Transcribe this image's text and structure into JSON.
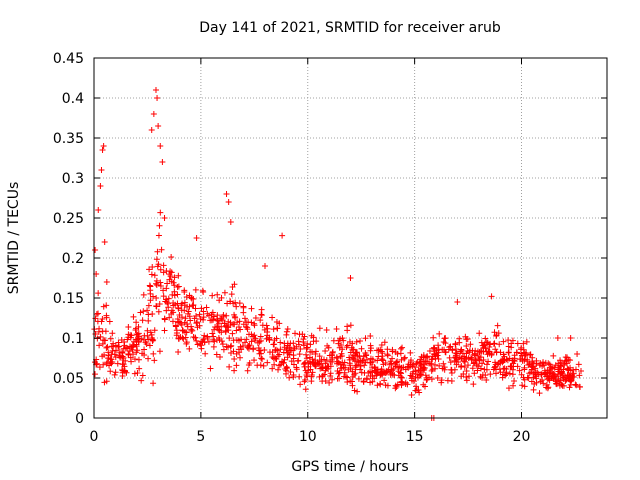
{
  "chart_data": {
    "type": "scatter",
    "title": "Day 141 of 2021, SRMTID for receiver arub",
    "xlabel": "GPS time / hours",
    "ylabel": "SRMTID / TECUs",
    "xlim": [
      0,
      24
    ],
    "ylim": [
      0,
      0.45
    ],
    "xticks": [
      0,
      5,
      10,
      15,
      20
    ],
    "xtick_labels": [
      "0",
      "5",
      "10",
      "15",
      "20"
    ],
    "yticks": [
      0,
      0.05,
      0.1,
      0.15,
      0.2,
      0.25,
      0.3,
      0.35,
      0.4,
      0.45
    ],
    "ytick_labels": [
      "0",
      "0.05",
      "0.1",
      "0.15",
      "0.2",
      "0.25",
      "0.3",
      "0.35",
      "0.4",
      "0.45"
    ],
    "grid": true,
    "marker": "+",
    "series_color": "#ff0000",
    "envelope": {
      "x": [
        0.0,
        0.3,
        0.5,
        1.0,
        2.0,
        2.8,
        3.0,
        3.5,
        4.0,
        5.0,
        6.0,
        6.5,
        8.0,
        9.0,
        10.0,
        12.0,
        14.0,
        15.0,
        16.0,
        18.0,
        19.0,
        20.0,
        21.0,
        22.0,
        22.8
      ],
      "center": [
        0.085,
        0.12,
        0.1,
        0.07,
        0.09,
        0.13,
        0.18,
        0.15,
        0.13,
        0.115,
        0.105,
        0.115,
        0.09,
        0.08,
        0.07,
        0.075,
        0.06,
        0.055,
        0.075,
        0.075,
        0.08,
        0.07,
        0.055,
        0.055,
        0.05
      ],
      "spread": [
        0.04,
        0.08,
        0.06,
        0.035,
        0.04,
        0.09,
        0.1,
        0.06,
        0.05,
        0.045,
        0.045,
        0.06,
        0.04,
        0.04,
        0.035,
        0.035,
        0.03,
        0.03,
        0.03,
        0.03,
        0.035,
        0.03,
        0.025,
        0.025,
        0.025
      ]
    },
    "points": [
      [
        0.05,
        0.21
      ],
      [
        0.1,
        0.18
      ],
      [
        0.2,
        0.26
      ],
      [
        0.3,
        0.29
      ],
      [
        0.35,
        0.31
      ],
      [
        0.4,
        0.335
      ],
      [
        0.45,
        0.34
      ],
      [
        0.5,
        0.22
      ],
      [
        0.6,
        0.17
      ],
      [
        2.7,
        0.36
      ],
      [
        2.8,
        0.38
      ],
      [
        2.9,
        0.41
      ],
      [
        2.95,
        0.4
      ],
      [
        3.0,
        0.365
      ],
      [
        3.1,
        0.34
      ],
      [
        3.2,
        0.32
      ],
      [
        3.3,
        0.25
      ],
      [
        4.8,
        0.225
      ],
      [
        6.2,
        0.28
      ],
      [
        6.3,
        0.27
      ],
      [
        6.4,
        0.245
      ],
      [
        8.0,
        0.19
      ],
      [
        8.8,
        0.228
      ],
      [
        12.0,
        0.175
      ],
      [
        15.8,
        0.0
      ],
      [
        15.9,
        0.0
      ],
      [
        17.0,
        0.145
      ],
      [
        18.6,
        0.152
      ],
      [
        21.7,
        0.1
      ],
      [
        22.3,
        0.1
      ],
      [
        22.6,
        0.08
      ]
    ]
  }
}
